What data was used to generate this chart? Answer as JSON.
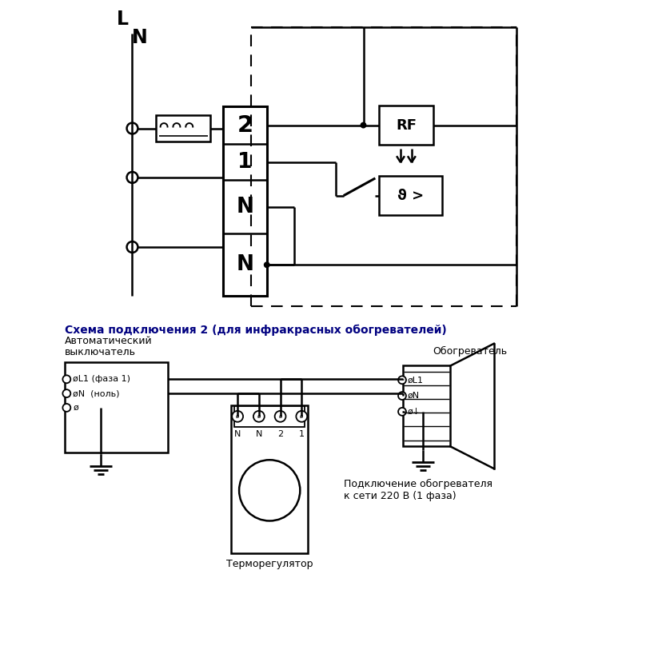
{
  "bg_color": "#ffffff",
  "line_color": "#000000",
  "title_color": "#000080",
  "figsize": [
    8.13,
    8.13
  ],
  "dpi": 100,
  "section2_title": "Схема подключения 2 (для инфракрасных обогревателей)",
  "label_L": "L",
  "label_N": "N",
  "label_RF": "RF",
  "label_theta": "ϑ>",
  "label_auto_1": "Автоматический",
  "label_auto_2": "выключатель",
  "label_heater": "Обогреватель",
  "label_thermo": "Терморегулятор",
  "label_connect_1": "Подключение обогревателя",
  "label_connect_2": "к сети 220 В (1 фаза)",
  "label_L1": "øL1 (фаза 1)",
  "label_Nhole": "øN  (ноль)",
  "label_phi": "ø"
}
